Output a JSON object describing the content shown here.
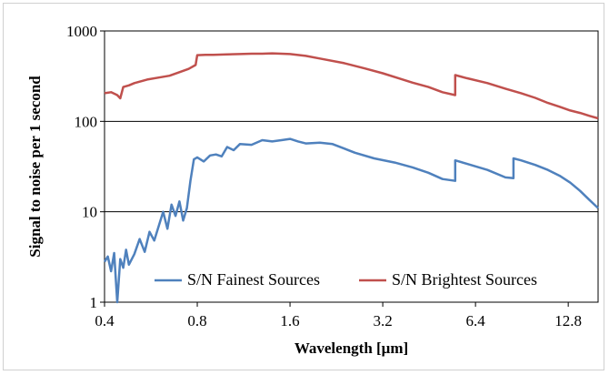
{
  "chart_data": {
    "type": "line",
    "title": "",
    "xlabel": "Wavelength [μm]",
    "ylabel": "Signal to noise per 1 second",
    "xscale": "log2",
    "yscale": "log10",
    "xlim": [
      0.4,
      16.0
    ],
    "ylim": [
      1,
      1000
    ],
    "x_ticks": [
      0.4,
      0.8,
      1.6,
      3.2,
      6.4,
      12.8
    ],
    "x_tick_labels": [
      "0.4",
      "0.8",
      "1.6",
      "3.2",
      "6.4",
      "12.8"
    ],
    "y_ticks": [
      1,
      10,
      100,
      1000
    ],
    "y_tick_labels": [
      "1",
      "10",
      "100",
      "1000"
    ],
    "grid": "horizontal",
    "legend_position": "bottom",
    "series": [
      {
        "name": "S/N Fainest Sources",
        "color": "#4f81bd",
        "x": [
          0.4,
          0.41,
          0.42,
          0.43,
          0.44,
          0.45,
          0.46,
          0.47,
          0.48,
          0.5,
          0.52,
          0.54,
          0.56,
          0.58,
          0.6,
          0.62,
          0.64,
          0.66,
          0.68,
          0.7,
          0.72,
          0.74,
          0.76,
          0.78,
          0.8,
          0.84,
          0.88,
          0.92,
          0.96,
          1.0,
          1.05,
          1.1,
          1.2,
          1.3,
          1.4,
          1.5,
          1.6,
          1.7,
          1.8,
          2.0,
          2.2,
          2.4,
          2.6,
          3.0,
          3.5,
          4.0,
          4.5,
          5.0,
          5.5,
          5.5,
          6.0,
          7.0,
          8.0,
          8.5,
          8.5,
          9.0,
          10.0,
          11.0,
          12.0,
          13.0,
          14.0,
          15.0,
          16.0
        ],
        "y": [
          2.8,
          3.2,
          2.2,
          3.5,
          1.0,
          3.0,
          2.4,
          3.8,
          2.6,
          3.4,
          5.0,
          3.6,
          6.0,
          4.8,
          7.0,
          10.0,
          6.5,
          12.0,
          9.0,
          13.0,
          8.0,
          11.0,
          22.0,
          38.0,
          40.0,
          36.0,
          42.0,
          43.0,
          41.0,
          52.0,
          48.0,
          56.0,
          55.0,
          62.0,
          60.0,
          62.0,
          64.0,
          60.0,
          57.0,
          58.0,
          56.0,
          50.0,
          45.0,
          39.0,
          35.0,
          31.0,
          27.0,
          23.0,
          22.0,
          37.0,
          34.0,
          29.0,
          24.0,
          23.5,
          39.0,
          37.0,
          33.0,
          29.0,
          25.0,
          21.0,
          17.0,
          13.5,
          11.0
        ]
      },
      {
        "name": "S/N Brightest Sources",
        "color": "#c0504d",
        "x": [
          0.4,
          0.42,
          0.44,
          0.45,
          0.46,
          0.48,
          0.5,
          0.55,
          0.6,
          0.65,
          0.7,
          0.75,
          0.79,
          0.8,
          0.85,
          0.9,
          1.0,
          1.1,
          1.2,
          1.3,
          1.4,
          1.5,
          1.6,
          1.8,
          2.0,
          2.4,
          2.8,
          3.2,
          3.6,
          4.0,
          4.5,
          5.0,
          5.5,
          5.5,
          6.0,
          7.0,
          8.0,
          9.0,
          10.0,
          11.0,
          12.0,
          13.0,
          14.0,
          15.0,
          16.0
        ],
        "y": [
          205.0,
          210.0,
          195.0,
          180.0,
          240.0,
          250.0,
          265.0,
          290.0,
          305.0,
          320.0,
          350.0,
          380.0,
          420.0,
          540.0,
          545.0,
          545.0,
          550.0,
          555.0,
          560.0,
          560.0,
          565.0,
          560.0,
          555.0,
          530.0,
          495.0,
          440.0,
          385.0,
          340.0,
          300.0,
          268.0,
          240.0,
          210.0,
          195.0,
          325.0,
          300.0,
          265.0,
          230.0,
          205.0,
          182.0,
          160.0,
          145.0,
          132.0,
          124.0,
          115.0,
          108.0
        ]
      }
    ]
  }
}
